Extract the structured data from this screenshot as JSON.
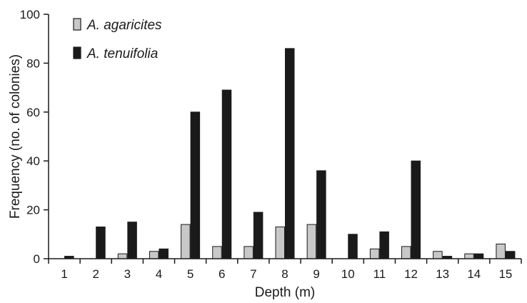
{
  "chart_data": {
    "type": "bar",
    "title": "",
    "xlabel": "Depth (m)",
    "ylabel": "Frequency (no. of colonies)",
    "ylim": [
      0,
      100
    ],
    "yticks": [
      0,
      20,
      40,
      60,
      80,
      100
    ],
    "categories": [
      "1",
      "2",
      "3",
      "4",
      "5",
      "6",
      "7",
      "8",
      "9",
      "10",
      "11",
      "12",
      "13",
      "14",
      "15"
    ],
    "series": [
      {
        "name": "A. agaricites",
        "color": "#c8c8c8",
        "values": [
          0,
          0,
          2,
          3,
          14,
          5,
          5,
          13,
          14,
          0,
          4,
          5,
          3,
          2,
          6
        ]
      },
      {
        "name": "A. tenuifolia",
        "color": "#1a1a1a",
        "values": [
          1,
          13,
          15,
          4,
          60,
          69,
          19,
          86,
          36,
          10,
          11,
          40,
          1,
          2,
          3
        ]
      }
    ],
    "grid": false,
    "legend_position": "top-left"
  }
}
